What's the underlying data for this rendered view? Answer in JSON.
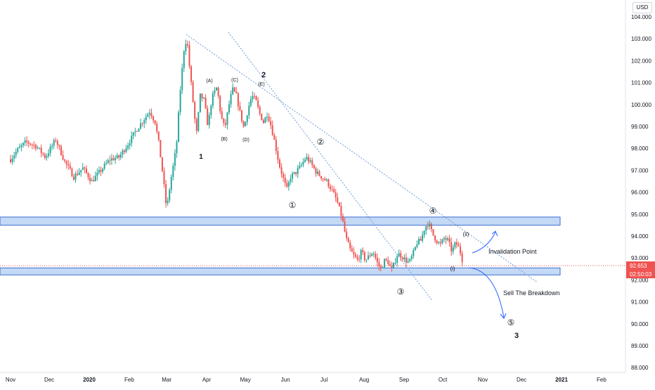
{
  "currency": "USD",
  "chart_data": {
    "type": "candlestick",
    "ylim": [
      87.8,
      104.4
    ],
    "grid": false,
    "y_ticks": [
      "104.000",
      "103.000",
      "102.000",
      "101.000",
      "100.000",
      "99.000",
      "98.000",
      "97.000",
      "96.000",
      "95.000",
      "94.000",
      "93.000",
      "92.000",
      "91.000",
      "90.000",
      "89.000",
      "88.000"
    ],
    "x_ticks": [
      "Nov",
      "Dec",
      "2020",
      "Feb",
      "Mar",
      "Apr",
      "May",
      "Jun",
      "Jul",
      "Aug",
      "Sep",
      "Oct",
      "Nov",
      "Dec",
      "2021",
      "Feb"
    ],
    "x_tick_days": [
      0,
      30,
      61,
      92,
      121,
      152,
      182,
      213,
      243,
      274,
      305,
      335,
      366,
      396,
      427,
      458
    ],
    "last_price": "92.653",
    "countdown": "02:50:03",
    "price_path": [
      [
        0,
        97.5
      ],
      [
        5,
        97.9
      ],
      [
        12,
        98.3
      ],
      [
        20,
        98.1
      ],
      [
        27,
        97.6
      ],
      [
        35,
        98.4
      ],
      [
        42,
        97.4
      ],
      [
        49,
        96.7
      ],
      [
        56,
        97.1
      ],
      [
        63,
        96.5
      ],
      [
        70,
        97.0
      ],
      [
        77,
        97.5
      ],
      [
        84,
        97.6
      ],
      [
        91,
        98.2
      ],
      [
        97,
        98.8
      ],
      [
        103,
        99.3
      ],
      [
        108,
        99.7
      ],
      [
        112,
        99.2
      ],
      [
        115,
        98.2
      ],
      [
        118,
        96.8
      ],
      [
        121,
        95.2
      ],
      [
        124,
        96.5
      ],
      [
        127,
        97.5
      ],
      [
        129,
        98.4
      ],
      [
        131,
        100.3
      ],
      [
        133,
        101.6
      ],
      [
        135,
        102.9
      ],
      [
        137,
        102.8
      ],
      [
        139,
        101.5
      ],
      [
        142,
        99.8
      ],
      [
        144,
        98.6
      ],
      [
        147,
        100.4
      ],
      [
        150,
        100.2
      ],
      [
        153,
        99.0
      ],
      [
        156,
        100.3
      ],
      [
        160,
        100.8
      ],
      [
        163,
        99.5
      ],
      [
        166,
        98.9
      ],
      [
        169,
        99.9
      ],
      [
        172,
        100.7
      ],
      [
        175,
        100.4
      ],
      [
        178,
        99.6
      ],
      [
        181,
        98.9
      ],
      [
        184,
        99.8
      ],
      [
        187,
        100.4
      ],
      [
        190,
        100.2
      ],
      [
        193,
        99.6
      ],
      [
        196,
        99.2
      ],
      [
        199,
        99.6
      ],
      [
        202,
        99.0
      ],
      [
        205,
        98.2
      ],
      [
        208,
        97.3
      ],
      [
        211,
        96.7
      ],
      [
        214,
        96.1
      ],
      [
        217,
        96.7
      ],
      [
        221,
        96.9
      ],
      [
        225,
        97.2
      ],
      [
        229,
        97.6
      ],
      [
        233,
        97.3
      ],
      [
        237,
        96.9
      ],
      [
        241,
        96.7
      ],
      [
        245,
        96.5
      ],
      [
        249,
        96.1
      ],
      [
        253,
        95.6
      ],
      [
        257,
        94.8
      ],
      [
        260,
        93.9
      ],
      [
        263,
        93.4
      ],
      [
        266,
        93.1
      ],
      [
        269,
        92.9
      ],
      [
        272,
        93.3
      ],
      [
        275,
        92.9
      ],
      [
        278,
        93.1
      ],
      [
        281,
        93.3
      ],
      [
        284,
        92.8
      ],
      [
        287,
        92.5
      ],
      [
        290,
        92.9
      ],
      [
        293,
        92.8
      ],
      [
        295,
        92.4
      ],
      [
        297,
        92.7
      ],
      [
        300,
        93.2
      ],
      [
        303,
        93.1
      ],
      [
        306,
        92.9
      ],
      [
        309,
        92.8
      ],
      [
        312,
        93.2
      ],
      [
        315,
        93.7
      ],
      [
        318,
        93.8
      ],
      [
        321,
        94.4
      ],
      [
        324,
        94.6
      ],
      [
        327,
        94.1
      ],
      [
        330,
        93.8
      ],
      [
        333,
        93.6
      ],
      [
        336,
        93.9
      ],
      [
        339,
        93.8
      ],
      [
        342,
        93.3
      ],
      [
        345,
        93.7
      ],
      [
        348,
        93.4
      ],
      [
        351,
        92.7
      ]
    ],
    "wave_labels": [
      "1",
      "(A)",
      "(B)",
      "(C)",
      "(D)",
      "(E)",
      "2",
      "①",
      "②",
      "③",
      "④",
      "(i)",
      "(ii)",
      "⑤",
      "3"
    ],
    "annotations": [
      "Invalidation Point",
      "Sell The Breakdown"
    ]
  }
}
